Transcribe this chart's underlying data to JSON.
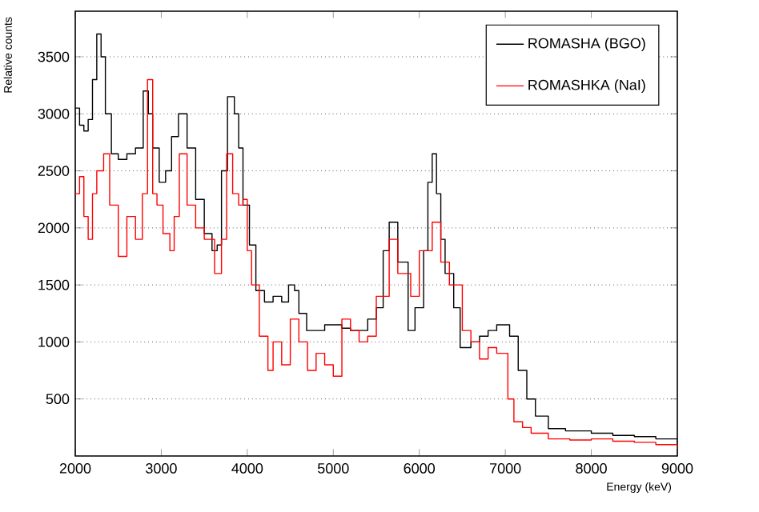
{
  "chart_data": {
    "type": "step",
    "xlabel": "Energy (keV)",
    "ylabel": "Relative counts",
    "xlim": [
      2000,
      9000
    ],
    "ylim": [
      0,
      3900
    ],
    "xticks": [
      2000,
      3000,
      4000,
      5000,
      6000,
      7000,
      8000,
      9000
    ],
    "yticks": [
      500,
      1000,
      1500,
      2000,
      2500,
      3000,
      3500
    ],
    "grid": "y",
    "legend": "top right",
    "marker": "none",
    "line_style": "solid",
    "series": [
      {
        "name": "ROMASHA (BGO)",
        "color": "#000000",
        "x": [
          2000,
          2050,
          2100,
          2150,
          2200,
          2250,
          2300,
          2350,
          2420,
          2500,
          2600,
          2700,
          2790,
          2850,
          2900,
          2976,
          3050,
          3120,
          3200,
          3300,
          3400,
          3500,
          3590,
          3650,
          3700,
          3770,
          3850,
          3900,
          3950,
          4025,
          4100,
          4200,
          4300,
          4400,
          4480,
          4550,
          4600,
          4690,
          4800,
          4900,
          5000,
          5100,
          5200,
          5300,
          5400,
          5500,
          5580,
          5650,
          5750,
          5870,
          5950,
          6050,
          6100,
          6150,
          6200,
          6250,
          6300,
          6400,
          6475,
          6600,
          6700,
          6800,
          6900,
          6980,
          7050,
          7150,
          7250,
          7350,
          7500,
          7700,
          8000,
          8250,
          8500,
          8750,
          9000
        ],
        "values": [
          3050,
          2900,
          2850,
          2950,
          3300,
          3700,
          3500,
          3000,
          2650,
          2600,
          2650,
          2700,
          3200,
          3000,
          2700,
          2400,
          2500,
          2800,
          3000,
          2700,
          2250,
          1950,
          1800,
          1850,
          2500,
          3150,
          3000,
          2700,
          2200,
          1850,
          1450,
          1350,
          1400,
          1350,
          1500,
          1450,
          1250,
          1100,
          1100,
          1150,
          1150,
          1120,
          1100,
          1100,
          1200,
          1300,
          1800,
          2050,
          1700,
          1100,
          1300,
          1800,
          2400,
          2650,
          2300,
          1900,
          1600,
          1300,
          950,
          1000,
          1050,
          1100,
          1150,
          1150,
          1050,
          750,
          500,
          350,
          240,
          220,
          200,
          180,
          170,
          150,
          100
        ]
      },
      {
        "name": "ROMASHKA (NaI)",
        "color": "#ff0000",
        "x": [
          2000,
          2050,
          2100,
          2150,
          2200,
          2250,
          2330,
          2400,
          2500,
          2600,
          2700,
          2780,
          2840,
          2900,
          2950,
          3020,
          3100,
          3150,
          3210,
          3300,
          3400,
          3500,
          3620,
          3700,
          3760,
          3830,
          3900,
          3950,
          4000,
          4050,
          4140,
          4240,
          4300,
          4400,
          4500,
          4600,
          4700,
          4800,
          4900,
          5000,
          5100,
          5200,
          5300,
          5400,
          5500,
          5650,
          5750,
          5900,
          6000,
          6150,
          6250,
          6350,
          6500,
          6600,
          6700,
          6800,
          6900,
          7030,
          7100,
          7200,
          7300,
          7500,
          7750,
          8000,
          8250,
          8500,
          8750,
          9000
        ],
        "values": [
          2300,
          2450,
          2100,
          1900,
          2300,
          2500,
          2650,
          2200,
          1750,
          2100,
          1900,
          2300,
          3300,
          2300,
          2200,
          1950,
          1800,
          2100,
          2650,
          2200,
          2000,
          1900,
          1600,
          1900,
          2650,
          2300,
          2200,
          2250,
          1800,
          1500,
          1050,
          750,
          1000,
          800,
          1200,
          1000,
          750,
          900,
          800,
          700,
          1200,
          1100,
          1000,
          1050,
          1400,
          1900,
          1600,
          1400,
          1800,
          2050,
          1700,
          1500,
          1100,
          1000,
          850,
          950,
          900,
          500,
          300,
          250,
          200,
          150,
          140,
          150,
          130,
          120,
          100,
          60
        ]
      }
    ]
  }
}
